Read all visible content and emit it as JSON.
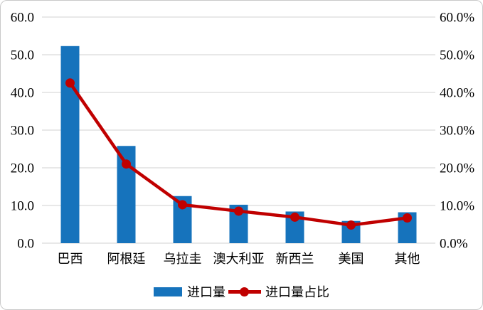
{
  "chart_data": {
    "type": "bar",
    "subtype": "combo-bar-line",
    "categories": [
      "巴西",
      "阿根廷",
      "乌拉圭",
      "澳大利亚",
      "新西兰",
      "美国",
      "其他"
    ],
    "series": [
      {
        "name": "进口量",
        "type": "bar",
        "axis": "left",
        "color": "#1673bc",
        "values": [
          52.3,
          25.8,
          12.5,
          10.2,
          8.4,
          5.9,
          8.2
        ]
      },
      {
        "name": "进口量占比",
        "type": "line",
        "axis": "right",
        "color": "#c00000",
        "values": [
          42.5,
          21.0,
          10.2,
          8.5,
          6.9,
          4.8,
          6.7
        ]
      }
    ],
    "title": "",
    "xlabel": "",
    "ylabel": "",
    "left_axis": {
      "min": 0,
      "max": 60,
      "tick_labels": [
        "0.0",
        "10.0",
        "20.0",
        "30.0",
        "40.0",
        "50.0",
        "60.0"
      ]
    },
    "right_axis": {
      "min": 0,
      "max": 60,
      "tick_labels": [
        "0.0%",
        "10.0%",
        "20.0%",
        "30.0%",
        "40.0%",
        "50.0%",
        "60.0%"
      ]
    },
    "grid": true,
    "legend_position": "bottom",
    "colors": {
      "gridline": "#d9d9d9",
      "background": "#ffffff",
      "frame_border": "#c9c9c9",
      "text": "#000000"
    }
  }
}
